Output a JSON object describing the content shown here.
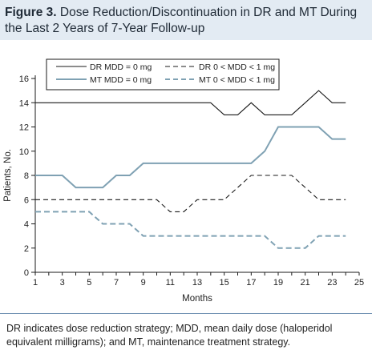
{
  "figure": {
    "label": "Figure 3.",
    "title": "Dose Reduction/Discontinuation in DR and MT During the Last 2 Years of 7-Year Follow-up"
  },
  "caption": "DR indicates dose reduction strategy; MDD, mean daily dose (haloperidol equivalent milligrams); and MT, maintenance treatment strategy.",
  "colors": {
    "dark": "#1a1a1a",
    "teal": "#7fa1b3",
    "header_bg": "#e3ebf3"
  },
  "chart_data": {
    "type": "line",
    "xlabel": "Months",
    "ylabel": "Patients, No.",
    "xlim": [
      1,
      25
    ],
    "ylim": [
      0,
      16
    ],
    "x_ticks": [
      1,
      3,
      5,
      7,
      9,
      11,
      13,
      15,
      17,
      19,
      21,
      23,
      25
    ],
    "y_ticks": [
      0,
      2,
      4,
      6,
      8,
      10,
      12,
      14,
      16
    ],
    "grid": false,
    "legend_position": "top-right",
    "x": [
      1,
      2,
      3,
      4,
      5,
      6,
      7,
      8,
      9,
      10,
      11,
      12,
      13,
      14,
      15,
      16,
      17,
      18,
      19,
      20,
      21,
      22,
      23,
      24
    ],
    "series": [
      {
        "name": "DR MDD = 0 mg",
        "color": "#1a1a1a",
        "dash": "solid",
        "values": [
          14,
          14,
          14,
          14,
          14,
          14,
          14,
          14,
          14,
          14,
          14,
          14,
          14,
          14,
          13,
          13,
          14,
          13,
          13,
          13,
          14,
          15,
          14,
          14
        ]
      },
      {
        "name": "MT MDD = 0 mg",
        "color": "#7fa1b3",
        "dash": "solid",
        "values": [
          8,
          8,
          8,
          7,
          7,
          7,
          8,
          8,
          9,
          9,
          9,
          9,
          9,
          9,
          9,
          9,
          9,
          10,
          12,
          12,
          12,
          12,
          11,
          11
        ]
      },
      {
        "name": "DR 0 < MDD < 1 mg",
        "color": "#1a1a1a",
        "dash": "dashed",
        "values": [
          6,
          6,
          6,
          6,
          6,
          6,
          6,
          6,
          6,
          6,
          5,
          5,
          6,
          6,
          6,
          7,
          8,
          8,
          8,
          8,
          7,
          6,
          6,
          6
        ]
      },
      {
        "name": "MT 0 < MDD < 1 mg",
        "color": "#7fa1b3",
        "dash": "dashed",
        "values": [
          5,
          5,
          5,
          5,
          5,
          4,
          4,
          4,
          3,
          3,
          3,
          3,
          3,
          3,
          3,
          3,
          3,
          3,
          2,
          2,
          2,
          3,
          3,
          3
        ]
      }
    ]
  }
}
